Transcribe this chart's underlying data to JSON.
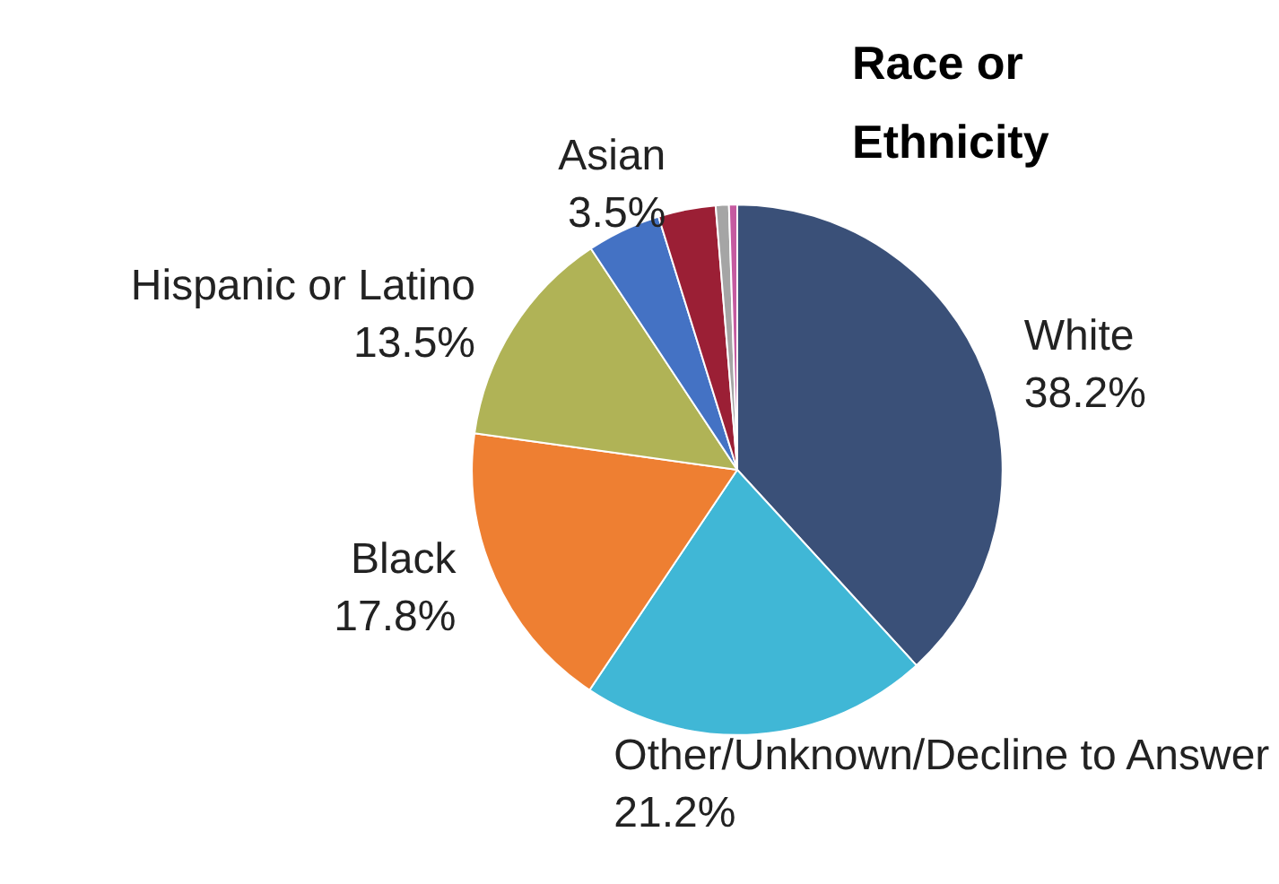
{
  "chart_data": {
    "type": "pie",
    "title": "Race or Ethnicity",
    "categories": [
      "White",
      "Other/Unknown/Decline to Answer",
      "Black",
      "Hispanic or Latino",
      null,
      "Asian",
      null,
      null
    ],
    "values": [
      38.2,
      21.2,
      17.8,
      13.5,
      4.5,
      3.5,
      0.8,
      0.5
    ],
    "value_labels": [
      "38.2%",
      "21.2%",
      "17.8%",
      "13.5%",
      null,
      "3.5%",
      null,
      null
    ],
    "colors": [
      "#3a5078",
      "#40b7d6",
      "#ee7f32",
      "#b0b356",
      "#4472c4",
      "#9b1f35",
      "#a5a5a5",
      "#c55aa0"
    ]
  }
}
